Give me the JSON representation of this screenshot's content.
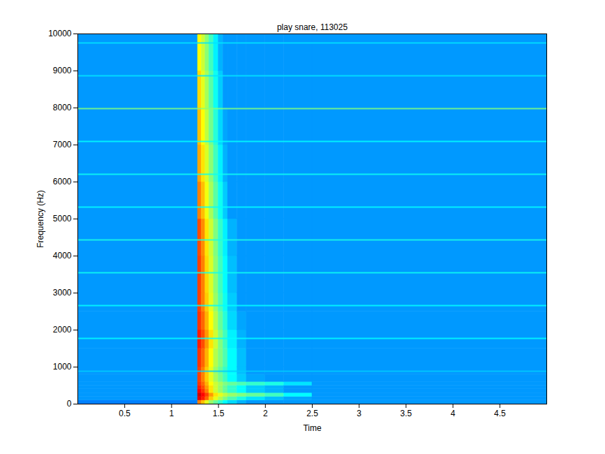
{
  "chart_data": {
    "type": "heatmap",
    "title": "play snare, 113025",
    "x_label": "Time",
    "y_label": "Frequency (Hz)",
    "xlim": [
      0,
      5
    ],
    "xticks": [
      0.5,
      1,
      1.5,
      2,
      2.5,
      3,
      3.5,
      4,
      4.5
    ],
    "ylim": [
      0,
      10000
    ],
    "yticks": [
      0,
      1000,
      2000,
      3000,
      4000,
      5000,
      6000,
      7000,
      8000,
      9000,
      10000
    ],
    "grid": false,
    "color": "jet",
    "clim": [
      -110,
      -30
    ],
    "time_edges": [
      0,
      1.28,
      1.32,
      1.36,
      1.4,
      1.45,
      1.5,
      1.55,
      1.6,
      1.7,
      1.8,
      2.0,
      2.2,
      2.5,
      5.0
    ],
    "freq_edges": [
      0,
      100,
      200,
      300,
      400,
      500,
      600,
      800,
      1000,
      1500,
      2000,
      2500,
      3000,
      4000,
      5000,
      6000,
      7000,
      8000,
      9000,
      10000
    ],
    "cells": [
      [
        -90,
        -50,
        -55,
        -62,
        -68,
        -72,
        -76,
        -80,
        -83,
        -86,
        -88,
        -88,
        -88,
        -88
      ],
      [
        -88,
        -38,
        -42,
        -48,
        -56,
        -62,
        -66,
        -70,
        -74,
        -78,
        -82,
        -85,
        -87,
        -88
      ],
      [
        -88,
        -36,
        -40,
        -45,
        -52,
        -58,
        -62,
        -65,
        -68,
        -70,
        -72,
        -75,
        -80,
        -88
      ],
      [
        -88,
        -40,
        -44,
        -50,
        -58,
        -64,
        -68,
        -72,
        -76,
        -80,
        -84,
        -86,
        -88,
        -88
      ],
      [
        -88,
        -42,
        -46,
        -52,
        -58,
        -64,
        -68,
        -72,
        -76,
        -80,
        -84,
        -86,
        -88,
        -88
      ],
      [
        -88,
        -44,
        -48,
        -54,
        -60,
        -64,
        -67,
        -70,
        -72,
        -74,
        -76,
        -78,
        -82,
        -88
      ],
      [
        -88,
        -45,
        -50,
        -56,
        -62,
        -67,
        -71,
        -75,
        -80,
        -84,
        -87,
        -88,
        -88,
        -88
      ],
      [
        -88,
        -45,
        -50,
        -56,
        -62,
        -68,
        -72,
        -76,
        -80,
        -85,
        -88,
        -88,
        -88,
        -88
      ],
      [
        -88,
        -44,
        -48,
        -54,
        -60,
        -66,
        -70,
        -74,
        -80,
        -85,
        -88,
        -88,
        -88,
        -88
      ],
      [
        -88,
        -42,
        -46,
        -52,
        -58,
        -64,
        -70,
        -75,
        -81,
        -86,
        -88,
        -88,
        -88,
        -88
      ],
      [
        -88,
        -44,
        -48,
        -54,
        -60,
        -66,
        -72,
        -77,
        -83,
        -87,
        -88,
        -88,
        -88,
        -88
      ],
      [
        -88,
        -45,
        -50,
        -56,
        -62,
        -68,
        -74,
        -79,
        -84,
        -88,
        -88,
        -88,
        -88,
        -88
      ],
      [
        -88,
        -45,
        -50,
        -57,
        -63,
        -69,
        -75,
        -80,
        -85,
        -88,
        -88,
        -88,
        -88,
        -88
      ],
      [
        -88,
        -46,
        -51,
        -58,
        -64,
        -70,
        -76,
        -81,
        -86,
        -88,
        -88,
        -88,
        -88,
        -88
      ],
      [
        -88,
        -50,
        -55,
        -61,
        -67,
        -73,
        -79,
        -84,
        -88,
        -88,
        -88,
        -88,
        -88,
        -88
      ],
      [
        -88,
        -53,
        -58,
        -63,
        -69,
        -75,
        -81,
        -86,
        -88,
        -88,
        -88,
        -88,
        -88,
        -88
      ],
      [
        -88,
        -55,
        -60,
        -65,
        -71,
        -77,
        -83,
        -87,
        -88,
        -88,
        -88,
        -88,
        -88,
        -88
      ],
      [
        -88,
        -57,
        -62,
        -67,
        -73,
        -79,
        -84,
        -88,
        -88,
        -88,
        -88,
        -88,
        -88,
        -88
      ],
      [
        -88,
        -60,
        -64,
        -69,
        -75,
        -81,
        -86,
        -88,
        -88,
        -88,
        -88,
        -88,
        -88,
        -88
      ]
    ],
    "tones": {
      "freqs": [
        887,
        1774,
        2661,
        3548,
        4435,
        5322,
        6209,
        7096,
        7983,
        8870,
        9757
      ],
      "levels": [
        -84,
        -80,
        -80,
        -79,
        -78,
        -80,
        -79,
        -80,
        -70,
        -82,
        -82
      ]
    }
  }
}
